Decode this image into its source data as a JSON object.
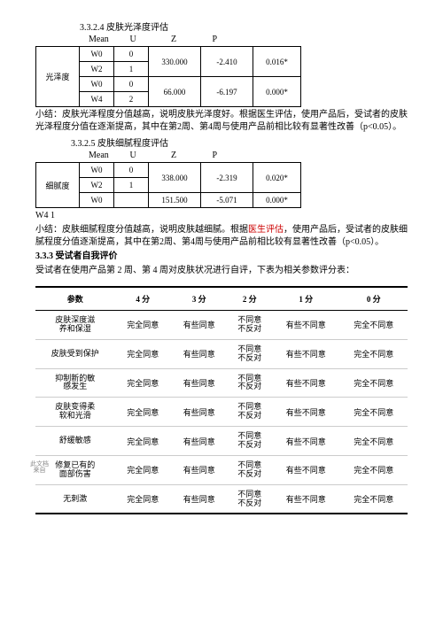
{
  "s1": {
    "num": "3.3.2.4",
    "title": "皮肤光泽度评估",
    "hdr": [
      "Mean",
      "U",
      "Z",
      "P"
    ],
    "rowlabel": "光泽度",
    "rows": [
      {
        "w": "W0",
        "n": "0",
        "v1": "330.000",
        "v2": "-2.410",
        "v3": "0.016*"
      },
      {
        "w": "W2",
        "n": "1",
        "v1": "",
        "v2": "",
        "v3": ""
      },
      {
        "w": "W0",
        "n": "0",
        "v1": "66.000",
        "v2": "-6.197",
        "v3": "0.000*"
      },
      {
        "w": "W4",
        "n": "2",
        "v1": "",
        "v2": "",
        "v3": ""
      }
    ],
    "summary_a": "小结：皮肤光泽程度分值越高，说明皮肤光泽度好。",
    "summary_b": "根据医生评估，使用产品后，受试者的皮肤光泽程度分值在逐渐提高，其中在第2周、第4周与使用产品前相比较有显著性改善（p<0.05）。"
  },
  "s2": {
    "num": "3.3.2.5",
    "title": "皮肤细腻程度评估",
    "hdr": [
      "Mean",
      "U",
      "Z",
      "P"
    ],
    "rowlabel": "细腻度",
    "rows": [
      {
        "w": "W0",
        "n": "0",
        "v1": "338.000",
        "v2": "-2.319",
        "v3": "0.020*"
      },
      {
        "w": "W2",
        "n": "1",
        "v1": "",
        "v2": "",
        "v3": ""
      },
      {
        "w": "W0",
        "n": "",
        "v1": "151.500",
        "v2": "-5.071",
        "v3": "0.000*"
      }
    ],
    "footer": "W4  1",
    "summary_a": "小结：皮肤细腻程度分值越高，说明皮肤越细腻。根据",
    "summary_b": "医生评估",
    "summary_c": "，使用产品后，受试者的皮肤细腻程度分值逐渐提高，其中在第2周、第4周与使用产品前相比较有显著性改善（p<0.05）。"
  },
  "s3": {
    "num": "3.3.3",
    "title": "受试者自我评价",
    "intro": "受试者在使用产品第 2 周、第 4 周对皮肤状况进行自评，下表为相关参数评分表："
  },
  "rating": {
    "head": [
      "参数",
      "4 分",
      "3 分",
      "2 分",
      "1 分",
      "0 分"
    ],
    "opts": {
      "a": "完全同意",
      "b": "有些同意",
      "c1": "不同意",
      "c2": "不反对",
      "d": "有些不同意",
      "e": "完全不同意"
    },
    "rows": [
      {
        "p1": "皮肤深度滋",
        "p2": "养和保湿"
      },
      {
        "p1": "皮肤受到保护",
        "p2": ""
      },
      {
        "p1": "抑制新的敏",
        "p2": "感发生"
      },
      {
        "p1": "皮肤变得柔",
        "p2": "软和光滑"
      },
      {
        "p1": "舒缓敏感",
        "p2": ""
      },
      {
        "p1": "修复已有的",
        "p2": "面部伤害",
        "note1": "此文档",
        "note2": "来自"
      },
      {
        "p1": "无刺激",
        "p2": ""
      }
    ]
  }
}
